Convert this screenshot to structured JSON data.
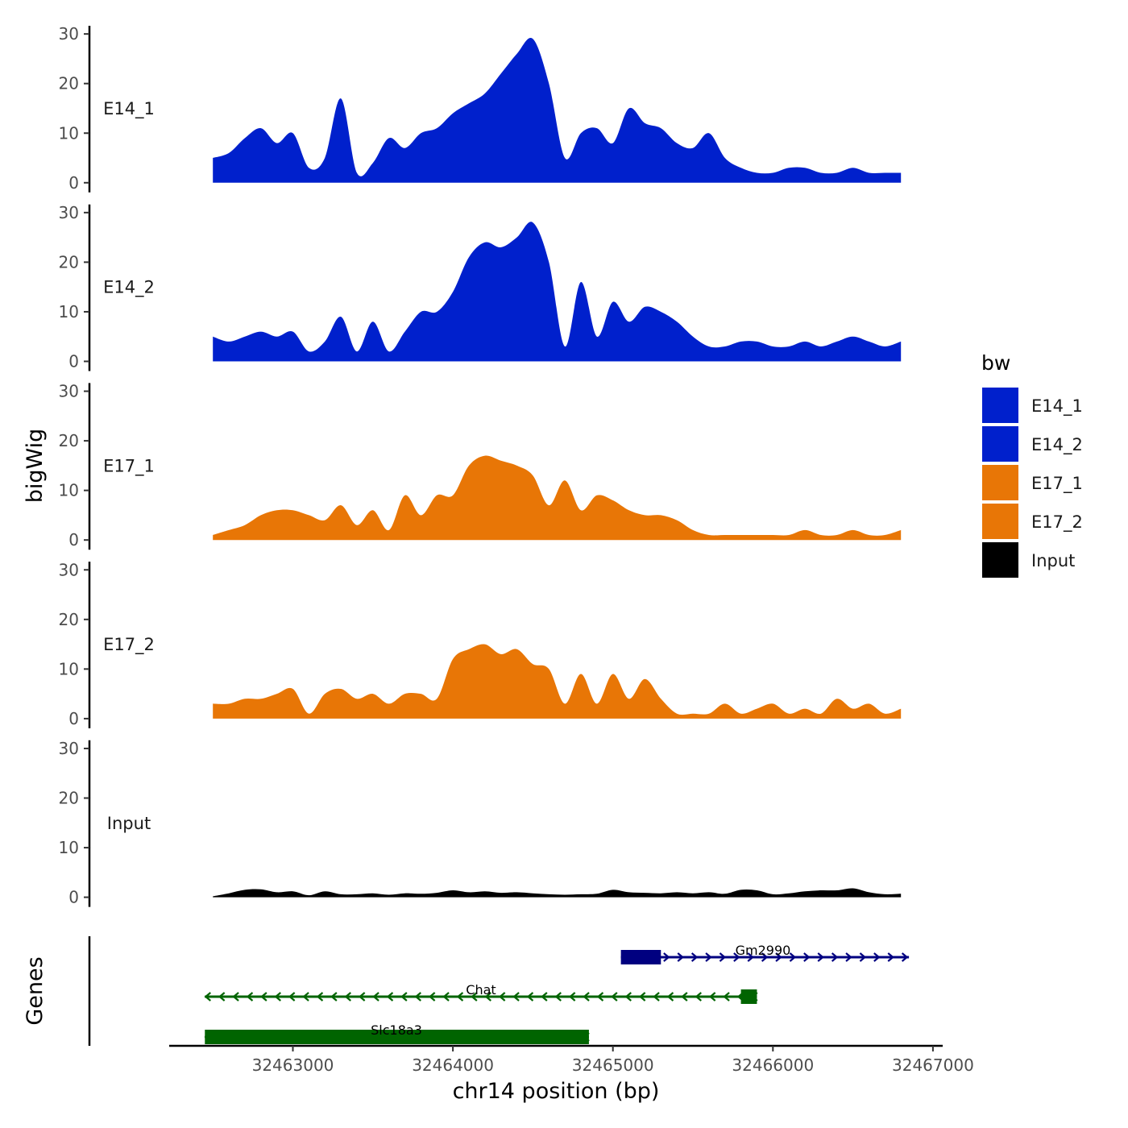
{
  "chart_data": {
    "type": "area",
    "chromosome_label": "chr14 position (bp)",
    "ylabel": "bigWig",
    "genes_label": "Genes",
    "legend": {
      "title": "bw",
      "placement": "right",
      "entries": [
        {
          "name": "E14_1",
          "color": "#0020CC"
        },
        {
          "name": "E14_2",
          "color": "#0020CC"
        },
        {
          "name": "E17_1",
          "color": "#E87606"
        },
        {
          "name": "E17_2",
          "color": "#E87606"
        },
        {
          "name": "Input",
          "color": "#000000"
        }
      ]
    },
    "xlim": [
      32462250,
      32467050
    ],
    "x_ticks": [
      32463000,
      32464000,
      32465000,
      32466000,
      32467000
    ],
    "x_tick_labels": [
      "32463000",
      "32464000",
      "32465000",
      "32466000",
      "32467000"
    ],
    "ylim": [
      0,
      31
    ],
    "y_ticks": [
      0,
      10,
      20,
      30
    ],
    "y_tick_labels": [
      "0",
      "10",
      "20",
      "30"
    ],
    "x": [
      32462500,
      32462600,
      32462700,
      32462800,
      32462900,
      32463000,
      32463100,
      32463200,
      32463300,
      32463400,
      32463500,
      32463600,
      32463700,
      32463800,
      32463900,
      32464000,
      32464100,
      32464200,
      32464300,
      32464400,
      32464500,
      32464600,
      32464700,
      32464800,
      32464900,
      32465000,
      32465100,
      32465200,
      32465300,
      32465400,
      32465500,
      32465600,
      32465700,
      32465800,
      32465900,
      32466000,
      32466100,
      32466200,
      32466300,
      32466400,
      32466500,
      32466600,
      32466700,
      32466800
    ],
    "series": [
      {
        "name": "E14_1",
        "color": "#0020CC",
        "values": [
          5,
          6,
          9,
          11,
          8,
          10,
          3,
          5,
          17,
          2,
          4,
          9,
          7,
          10,
          11,
          14,
          16,
          18,
          22,
          26,
          29,
          20,
          5,
          10,
          11,
          8,
          15,
          12,
          11,
          8,
          7,
          10,
          5,
          3,
          2,
          2,
          3,
          3,
          2,
          2,
          3,
          2,
          2,
          2
        ]
      },
      {
        "name": "E14_2",
        "color": "#0020CC",
        "values": [
          5,
          4,
          5,
          6,
          5,
          6,
          2,
          4,
          9,
          2,
          8,
          2,
          6,
          10,
          10,
          14,
          21,
          24,
          23,
          25,
          28,
          20,
          3,
          16,
          5,
          12,
          8,
          11,
          10,
          8,
          5,
          3,
          3,
          4,
          4,
          3,
          3,
          4,
          3,
          4,
          5,
          4,
          3,
          4
        ]
      },
      {
        "name": "E17_1",
        "color": "#E87606",
        "values": [
          1,
          2,
          3,
          5,
          6,
          6,
          5,
          4,
          7,
          3,
          6,
          2,
          9,
          5,
          9,
          9,
          15,
          17,
          16,
          15,
          13,
          7,
          12,
          6,
          9,
          8,
          6,
          5,
          5,
          4,
          2,
          1,
          1,
          1,
          1,
          1,
          1,
          2,
          1,
          1,
          2,
          1,
          1,
          2
        ]
      },
      {
        "name": "E17_2",
        "color": "#E87606",
        "values": [
          3,
          3,
          4,
          4,
          5,
          6,
          1,
          5,
          6,
          4,
          5,
          3,
          5,
          5,
          4,
          12,
          14,
          15,
          13,
          14,
          11,
          10,
          3,
          9,
          3,
          9,
          4,
          8,
          4,
          1,
          1,
          1,
          3,
          1,
          2,
          3,
          1,
          2,
          1,
          4,
          2,
          3,
          1,
          2
        ]
      },
      {
        "name": "Input",
        "color": "#000000",
        "values": [
          0.2,
          0.8,
          1.5,
          1.6,
          1,
          1.2,
          0.4,
          1.2,
          0.6,
          0.6,
          0.8,
          0.5,
          0.8,
          0.7,
          0.9,
          1.4,
          1,
          1.2,
          0.9,
          1,
          0.8,
          0.6,
          0.5,
          0.6,
          0.7,
          1.5,
          1,
          0.9,
          0.8,
          1,
          0.8,
          1,
          0.7,
          1.5,
          1.4,
          0.6,
          0.8,
          1.2,
          1.4,
          1.4,
          1.8,
          1,
          0.6,
          0.7
        ]
      }
    ],
    "genes": [
      {
        "name": "Gm2990",
        "color": "#000080",
        "strand": "+",
        "start": 32465050,
        "end": 32466850,
        "exons": [
          [
            32465050,
            32465300
          ]
        ]
      },
      {
        "name": "Chat",
        "color": "#006400",
        "strand": "-",
        "start": 32462450,
        "end": 32465900,
        "exons": [
          [
            32465800,
            32465900
          ]
        ]
      },
      {
        "name": "Slc18a3",
        "color": "#006400",
        "strand": "-",
        "start": 32462450,
        "end": 32464850,
        "exons": [
          [
            32462450,
            32464850
          ]
        ]
      }
    ]
  }
}
